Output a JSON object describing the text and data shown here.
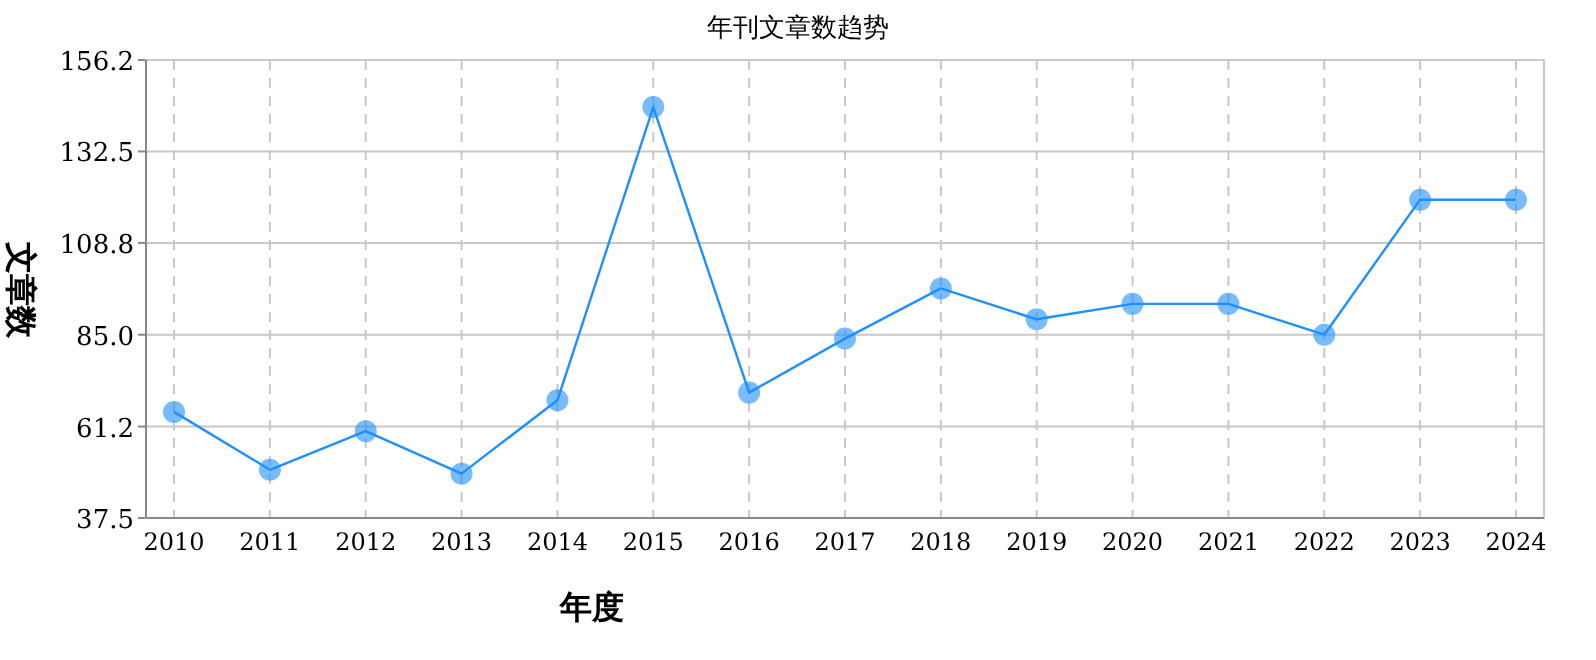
{
  "chart_data": {
    "type": "line",
    "title": "年刊文章数趋势",
    "xlabel": "年度",
    "ylabel": "文章数",
    "categories": [
      "2010",
      "2011",
      "2012",
      "2013",
      "2014",
      "2015",
      "2016",
      "2017",
      "2018",
      "2019",
      "2020",
      "2021",
      "2022",
      "2023",
      "2024"
    ],
    "series": [
      {
        "color": "#1e90ff",
        "values": [
          65,
          50,
          60,
          49,
          68,
          144,
          70,
          84,
          97,
          89,
          93,
          93,
          85,
          120,
          120
        ]
      }
    ],
    "ylim": [
      37.5,
      156.2
    ],
    "yticks": [
      37.5,
      61.2,
      {
        "value": 85,
        "label": "85.0"
      },
      108.8,
      132.5,
      156.2
    ],
    "grid": true,
    "marker": "circle"
  }
}
